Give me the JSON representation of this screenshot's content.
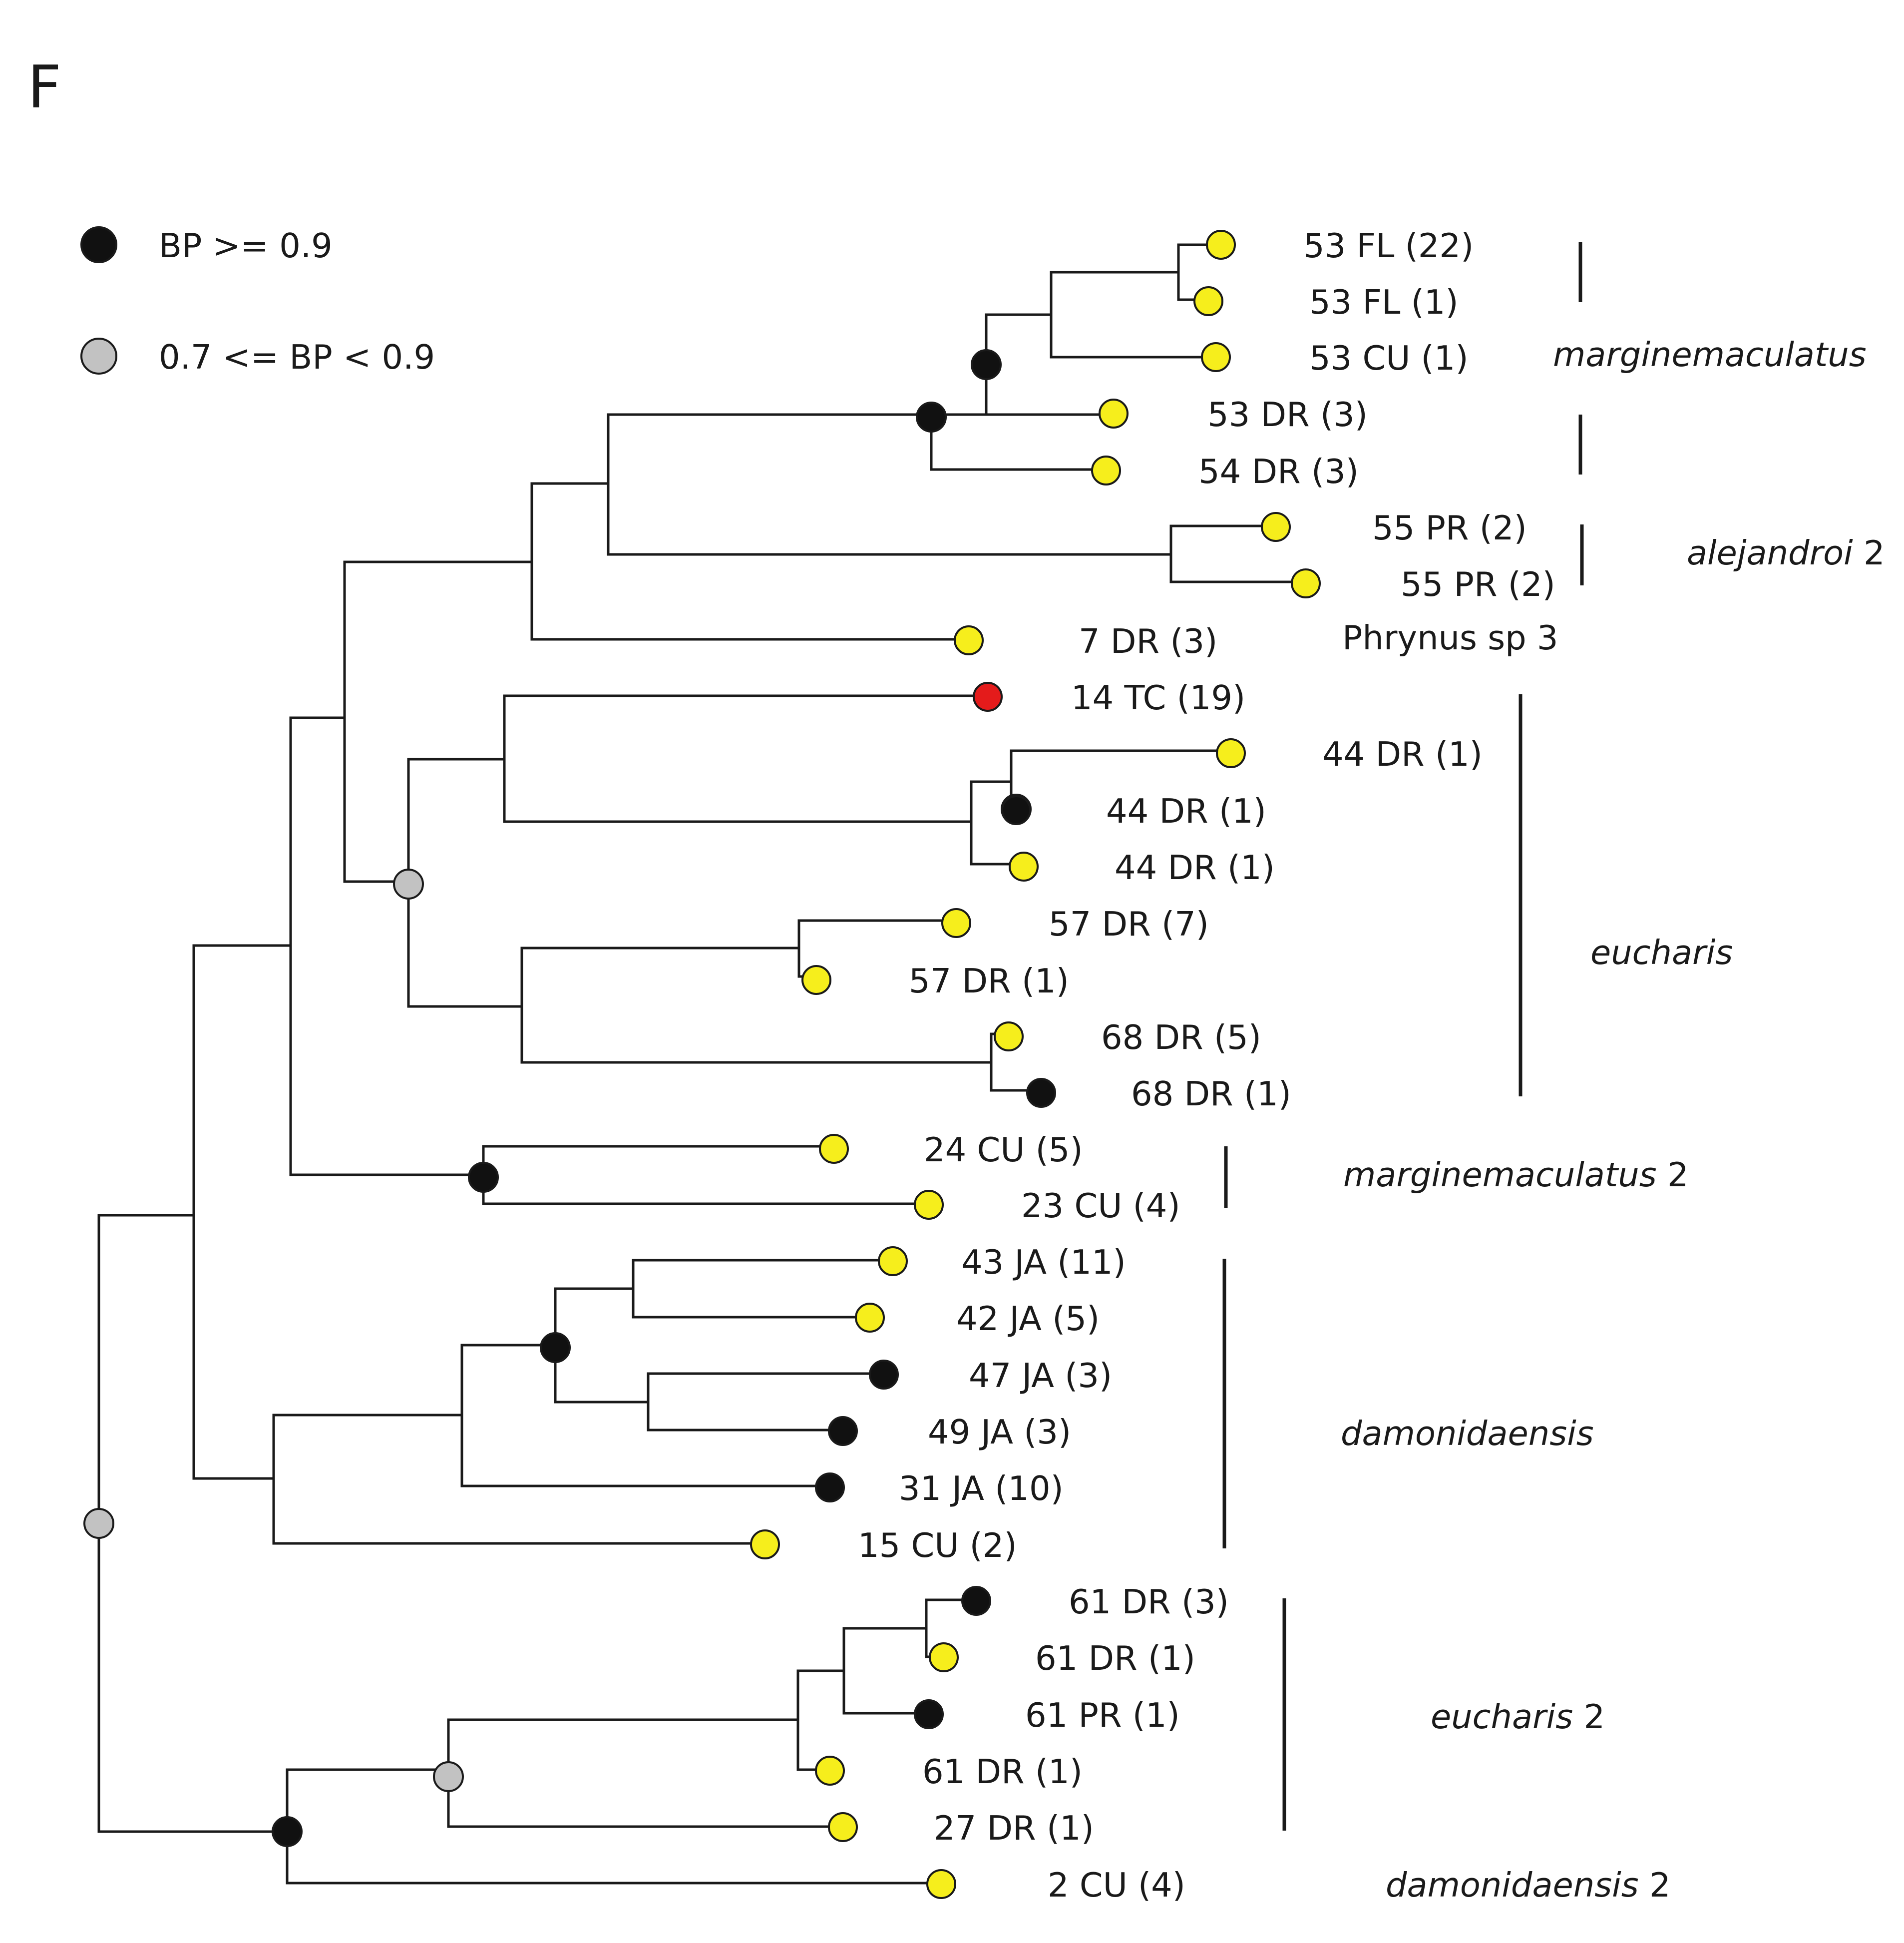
{
  "panel_label": "F",
  "colors": {
    "tip_yellow": "#f6ee1c",
    "tip_red": "#e41b1b",
    "node_black": "#111111",
    "node_gray": "#c2c2c2"
  },
  "legend": [
    {
      "symbol": "black",
      "label": "BP >= 0.9"
    },
    {
      "symbol": "gray",
      "label": "0.7 <= BP < 0.9"
    }
  ],
  "tips": [
    {
      "label": "53 FL (22)",
      "color": "yellow"
    },
    {
      "label": "53 FL (1)",
      "color": "yellow"
    },
    {
      "label": "53 CU (1)",
      "color": "yellow"
    },
    {
      "label": "53 DR (3)",
      "color": "yellow"
    },
    {
      "label": "54 DR (3)",
      "color": "yellow"
    },
    {
      "label": "55 PR (2)",
      "color": "yellow"
    },
    {
      "label": "55 PR (2)",
      "color": "yellow"
    },
    {
      "label": "7 DR (3)",
      "color": "yellow"
    },
    {
      "label": "14 TC (19)",
      "color": "red"
    },
    {
      "label": "44 DR (1)",
      "color": "yellow"
    },
    {
      "label": "44 DR (1)",
      "color": "black"
    },
    {
      "label": "44 DR (1)",
      "color": "yellow"
    },
    {
      "label": "57 DR (7)",
      "color": "yellow"
    },
    {
      "label": "57 DR (1)",
      "color": "yellow"
    },
    {
      "label": "68 DR (5)",
      "color": "yellow"
    },
    {
      "label": "68 DR (1)",
      "color": "black"
    },
    {
      "label": "24 CU (5)",
      "color": "yellow"
    },
    {
      "label": "23 CU (4)",
      "color": "yellow"
    },
    {
      "label": "43 JA (11)",
      "color": "yellow"
    },
    {
      "label": "42 JA (5)",
      "color": "yellow"
    },
    {
      "label": "47 JA (3)",
      "color": "black"
    },
    {
      "label": "49 JA (3)",
      "color": "black"
    },
    {
      "label": "31 JA (10)",
      "color": "black"
    },
    {
      "label": "15 CU (2)",
      "color": "yellow"
    },
    {
      "label": "61 DR (3)",
      "color": "black"
    },
    {
      "label": "61 DR (1)",
      "color": "yellow"
    },
    {
      "label": "61 PR (1)",
      "color": "black"
    },
    {
      "label": "61 DR (1)",
      "color": "yellow"
    },
    {
      "label": "27 DR (1)",
      "color": "yellow"
    },
    {
      "label": "2 CU (4)",
      "color": "yellow"
    }
  ],
  "support_nodes": [
    {
      "clade": "53 FL / 53 CU / 53 DR",
      "support": "black"
    },
    {
      "clade": "53 FL / 53 CU / 53 DR / 54 DR",
      "support": "black"
    },
    {
      "clade": "44 DR (1) / 44 DR (1)",
      "support": "black"
    },
    {
      "clade": "14 TC / 44 DR / 57 DR / 68 DR",
      "support": "gray"
    },
    {
      "clade": "24 CU / 23 CU",
      "support": "black"
    },
    {
      "clade": "43 JA / 42 JA / 47 JA / 49 JA",
      "support": "black"
    },
    {
      "clade": "61 DR / 61 PR / 27 DR",
      "support": "gray"
    },
    {
      "clade": "61 DR / 61 PR / 27 DR / 2 CU",
      "support": "black"
    },
    {
      "clade": "root",
      "support": "gray"
    }
  ],
  "extra_label": "Phrynus sp 3",
  "clades": [
    {
      "name": "marginemaculatus",
      "suffix": ""
    },
    {
      "name": "alejandroi",
      "suffix": "2"
    },
    {
      "name": "eucharis",
      "suffix": ""
    },
    {
      "name": "marginemaculatus",
      "suffix": "2"
    },
    {
      "name": "damonidaensis",
      "suffix": ""
    },
    {
      "name": "eucharis",
      "suffix": "2"
    },
    {
      "name": "damonidaensis",
      "suffix": "2"
    }
  ]
}
